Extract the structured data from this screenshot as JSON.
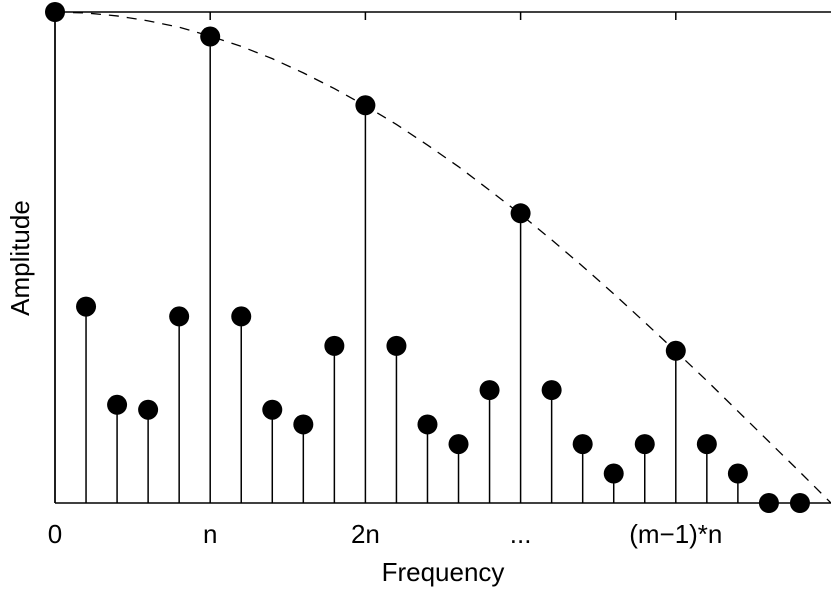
{
  "chart_data": {
    "type": "stem",
    "xlabel": "Frequency",
    "ylabel": "Amplitude",
    "x": [
      0,
      1,
      2,
      3,
      4,
      5,
      6,
      7,
      8,
      9,
      10,
      11,
      12,
      13,
      14,
      15,
      16,
      17,
      18,
      19,
      20,
      21,
      22,
      23,
      24
    ],
    "values": [
      1.0,
      0.4,
      0.2,
      0.19,
      0.38,
      0.95,
      0.38,
      0.19,
      0.16,
      0.32,
      0.81,
      0.32,
      0.16,
      0.12,
      0.23,
      0.59,
      0.23,
      0.12,
      0.06,
      0.12,
      0.31,
      0.12,
      0.06,
      0,
      0
    ],
    "color": "#000000",
    "envelope": {
      "x": [
        0,
        1,
        2,
        3,
        4,
        5,
        6,
        7,
        8,
        9,
        10,
        11,
        12,
        13,
        14,
        15,
        16,
        17,
        18,
        19,
        20,
        21,
        22,
        23,
        24,
        25
      ],
      "values": [
        1.0,
        0.998,
        0.992,
        0.982,
        0.969,
        0.951,
        0.93,
        0.905,
        0.876,
        0.844,
        0.809,
        0.771,
        0.729,
        0.685,
        0.637,
        0.588,
        0.536,
        0.482,
        0.426,
        0.368,
        0.309,
        0.249,
        0.187,
        0.125,
        0.063,
        0
      ]
    },
    "xlim": [
      0,
      25
    ],
    "ylim": [
      0,
      1
    ],
    "xticks": [
      0,
      {
        "value": 5,
        "label": "n"
      },
      {
        "value": 10,
        "label": "2n"
      },
      {
        "value": 15,
        "label": "..."
      },
      {
        "value": 20,
        "label": "(m−1)*n"
      }
    ]
  }
}
